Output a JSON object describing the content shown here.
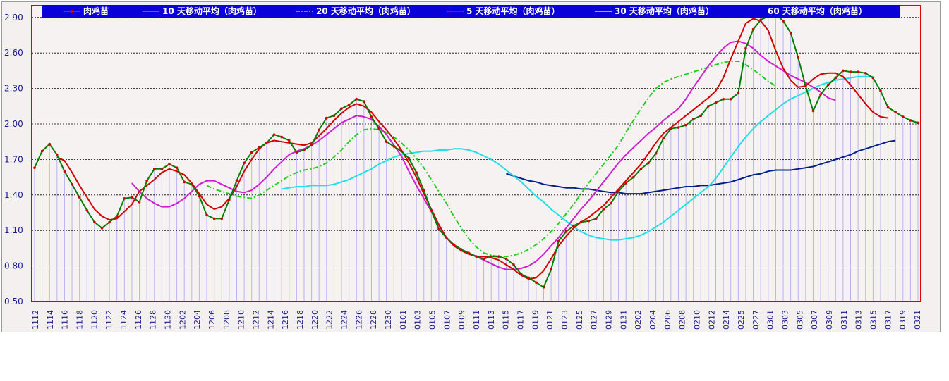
{
  "chart_data": {
    "type": "line",
    "ylim": [
      0.5,
      3.0
    ],
    "yticks": [
      "0.50",
      "0.80",
      "1.10",
      "1.40",
      "1.70",
      "2.00",
      "2.30",
      "2.60",
      "2.90"
    ],
    "xticks": [
      "1112",
      "1114",
      "1116",
      "1118",
      "1120",
      "1122",
      "1124",
      "1126",
      "1128",
      "1130",
      "1202",
      "1204",
      "1206",
      "1208",
      "1210",
      "1212",
      "1214",
      "1216",
      "1218",
      "1220",
      "1222",
      "1224",
      "1226",
      "1228",
      "1230",
      "0101",
      "0103",
      "0105",
      "0107",
      "0109",
      "0111",
      "0113",
      "0115",
      "0117",
      "0119",
      "0121",
      "0123",
      "0125",
      "0127",
      "0129",
      "0131",
      "0202",
      "0204",
      "0206",
      "0208",
      "0210",
      "0212",
      "0214",
      "0225",
      "0227",
      "0301",
      "0303",
      "0305",
      "0307",
      "0309",
      "0311",
      "0313",
      "0315",
      "0317",
      "0319",
      "0321"
    ],
    "grid": true,
    "legend_position": "top",
    "colors": {
      "bars": "#b7b4f0",
      "frame": "#e00000",
      "legend_bg": "#0a00d8",
      "gridline": "#000000",
      "ma5": "#d40000",
      "ma10": "#d21cd2",
      "ma20": "#20d020",
      "ma30": "#20e0e8",
      "ma60": "#00208c"
    },
    "series": [
      {
        "name": "肉鸡苗",
        "color": "#008000",
        "marker_color": "#d40000",
        "style": "solid-markers",
        "values": [
          1.63,
          1.77,
          1.83,
          1.74,
          1.6,
          1.49,
          1.38,
          1.27,
          1.17,
          1.12,
          1.17,
          1.22,
          1.37,
          1.38,
          1.34,
          1.52,
          1.62,
          1.62,
          1.66,
          1.63,
          1.51,
          1.49,
          1.39,
          1.23,
          1.2,
          1.2,
          1.36,
          1.52,
          1.67,
          1.76,
          1.8,
          1.84,
          1.91,
          1.89,
          1.86,
          1.76,
          1.78,
          1.82,
          1.95,
          2.05,
          2.07,
          2.13,
          2.16,
          2.21,
          2.19,
          2.06,
          1.96,
          1.85,
          1.81,
          1.77,
          1.71,
          1.59,
          1.44,
          1.27,
          1.11,
          1.04,
          0.98,
          0.94,
          0.91,
          0.88,
          0.86,
          0.88,
          0.88,
          0.86,
          0.81,
          0.73,
          0.7,
          0.66,
          0.62,
          0.77,
          1.01,
          1.09,
          1.14,
          1.17,
          1.18,
          1.2,
          1.28,
          1.33,
          1.43,
          1.5,
          1.55,
          1.62,
          1.67,
          1.75,
          1.88,
          1.96,
          1.97,
          1.99,
          2.04,
          2.07,
          2.15,
          2.18,
          2.21,
          2.21,
          2.26,
          2.64,
          2.8,
          2.88,
          2.91,
          2.93,
          2.87,
          2.77,
          2.56,
          2.32,
          2.11,
          2.25,
          2.33,
          2.39,
          2.45,
          2.44,
          2.44,
          2.43,
          2.39,
          2.28,
          2.14,
          2.1,
          2.06,
          2.03,
          2.01
        ]
      },
      {
        "name": "10 天移动平均（肉鸡苗）",
        "color": "#d21cd2",
        "style": "solid",
        "offset": 13,
        "values": [
          1.5,
          1.43,
          1.37,
          1.33,
          1.3,
          1.3,
          1.33,
          1.37,
          1.43,
          1.49,
          1.52,
          1.52,
          1.49,
          1.46,
          1.43,
          1.42,
          1.44,
          1.49,
          1.55,
          1.62,
          1.68,
          1.74,
          1.77,
          1.79,
          1.82,
          1.86,
          1.91,
          1.96,
          2.01,
          2.04,
          2.07,
          2.06,
          2.04,
          1.98,
          1.91,
          1.82,
          1.73,
          1.6,
          1.48,
          1.37,
          1.26,
          1.14,
          1.04,
          0.98,
          0.94,
          0.91,
          0.88,
          0.85,
          0.82,
          0.79,
          0.77,
          0.77,
          0.78,
          0.8,
          0.84,
          0.9,
          0.97,
          1.04,
          1.12,
          1.2,
          1.28,
          1.35,
          1.43,
          1.51,
          1.59,
          1.67,
          1.74,
          1.8,
          1.86,
          1.92,
          1.97,
          2.03,
          2.08,
          2.13,
          2.21,
          2.31,
          2.4,
          2.49,
          2.57,
          2.64,
          2.69,
          2.7,
          2.68,
          2.64,
          2.58,
          2.53,
          2.49,
          2.45,
          2.41,
          2.38,
          2.35,
          2.31,
          2.27,
          2.22,
          2.2
        ]
      },
      {
        "name": "20 天移动平均（肉鸡苗）",
        "color": "#20d020",
        "style": "dashdot",
        "offset": 23,
        "values": [
          1.48,
          1.45,
          1.43,
          1.41,
          1.39,
          1.38,
          1.37,
          1.4,
          1.44,
          1.48,
          1.52,
          1.56,
          1.59,
          1.61,
          1.62,
          1.64,
          1.67,
          1.72,
          1.78,
          1.85,
          1.91,
          1.95,
          1.96,
          1.95,
          1.93,
          1.89,
          1.84,
          1.78,
          1.71,
          1.63,
          1.53,
          1.43,
          1.33,
          1.22,
          1.12,
          1.03,
          0.96,
          0.91,
          0.89,
          0.88,
          0.88,
          0.89,
          0.91,
          0.94,
          0.98,
          1.03,
          1.09,
          1.16,
          1.24,
          1.32,
          1.41,
          1.5,
          1.58,
          1.66,
          1.74,
          1.82,
          1.93,
          2.03,
          2.13,
          2.22,
          2.3,
          2.35,
          2.38,
          2.4,
          2.42,
          2.44,
          2.46,
          2.48,
          2.5,
          2.52,
          2.53,
          2.53,
          2.5,
          2.46,
          2.41,
          2.36,
          2.32
        ]
      },
      {
        "name": "5 天移动平均（肉鸡苗）",
        "color": "#d40000",
        "style": "solid",
        "offset": 3,
        "values": [
          1.72,
          1.69,
          1.59,
          1.48,
          1.38,
          1.28,
          1.22,
          1.19,
          1.2,
          1.26,
          1.32,
          1.43,
          1.48,
          1.53,
          1.59,
          1.62,
          1.6,
          1.57,
          1.5,
          1.41,
          1.32,
          1.28,
          1.3,
          1.37,
          1.47,
          1.6,
          1.7,
          1.79,
          1.84,
          1.86,
          1.85,
          1.84,
          1.83,
          1.82,
          1.84,
          1.9,
          1.96,
          2.03,
          2.09,
          2.14,
          2.17,
          2.15,
          2.1,
          2.02,
          1.95,
          1.87,
          1.78,
          1.67,
          1.55,
          1.41,
          1.28,
          1.15,
          1.04,
          0.97,
          0.93,
          0.9,
          0.88,
          0.88,
          0.87,
          0.85,
          0.81,
          0.77,
          0.72,
          0.69,
          0.7,
          0.76,
          0.86,
          0.97,
          1.05,
          1.12,
          1.17,
          1.21,
          1.26,
          1.31,
          1.38,
          1.45,
          1.52,
          1.59,
          1.66,
          1.75,
          1.84,
          1.92,
          1.97,
          2.02,
          2.07,
          2.12,
          2.17,
          2.22,
          2.28,
          2.39,
          2.55,
          2.7,
          2.85,
          2.89,
          2.87,
          2.79,
          2.62,
          2.47,
          2.37,
          2.31,
          2.32,
          2.38,
          2.42,
          2.43,
          2.43,
          2.4,
          2.33,
          2.25,
          2.17,
          2.1,
          2.06,
          2.05
        ]
      },
      {
        "name": "30 天移动平均（肉鸡苗）",
        "color": "#20e0e8",
        "style": "solid",
        "offset": 33,
        "values": [
          1.45,
          1.46,
          1.47,
          1.47,
          1.48,
          1.48,
          1.48,
          1.49,
          1.51,
          1.53,
          1.56,
          1.59,
          1.62,
          1.66,
          1.69,
          1.72,
          1.74,
          1.75,
          1.76,
          1.77,
          1.77,
          1.78,
          1.78,
          1.79,
          1.79,
          1.78,
          1.76,
          1.73,
          1.7,
          1.66,
          1.61,
          1.56,
          1.51,
          1.45,
          1.39,
          1.34,
          1.28,
          1.23,
          1.18,
          1.13,
          1.09,
          1.06,
          1.04,
          1.03,
          1.02,
          1.02,
          1.03,
          1.04,
          1.06,
          1.09,
          1.13,
          1.17,
          1.22,
          1.27,
          1.32,
          1.37,
          1.42,
          1.47,
          1.54,
          1.63,
          1.72,
          1.81,
          1.89,
          1.96,
          2.02,
          2.07,
          2.12,
          2.17,
          2.21,
          2.24,
          2.27,
          2.3,
          2.33,
          2.35,
          2.37,
          2.38,
          2.39,
          2.4,
          2.4,
          2.4
        ]
      },
      {
        "name": "60 天移动平均（肉鸡苗）",
        "color": "#00208c",
        "style": "solid",
        "offset": 63,
        "values": [
          1.58,
          1.56,
          1.54,
          1.52,
          1.51,
          1.49,
          1.48,
          1.47,
          1.46,
          1.46,
          1.45,
          1.45,
          1.44,
          1.43,
          1.42,
          1.42,
          1.41,
          1.41,
          1.41,
          1.42,
          1.43,
          1.44,
          1.45,
          1.46,
          1.47,
          1.47,
          1.48,
          1.48,
          1.49,
          1.5,
          1.51,
          1.53,
          1.55,
          1.57,
          1.58,
          1.6,
          1.61,
          1.61,
          1.61,
          1.62,
          1.63,
          1.64,
          1.66,
          1.68,
          1.7,
          1.72,
          1.74,
          1.77,
          1.79,
          1.81,
          1.83,
          1.85,
          1.86
        ]
      }
    ]
  }
}
